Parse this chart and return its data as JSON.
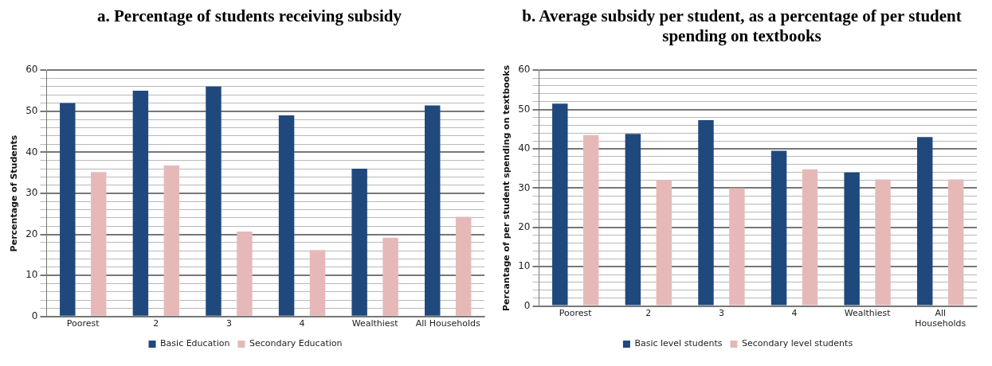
{
  "chart_data": [
    {
      "type": "bar",
      "title": "a. Percentage of students receiving subsidy",
      "ylabel": "Percentage of Students",
      "categories": [
        "Poorest",
        "2",
        "3",
        "4",
        "Wealthiest",
        "All Households"
      ],
      "series": [
        {
          "name": "Basic Education",
          "color": "#1f497d",
          "values": [
            52,
            55,
            56,
            49,
            36,
            51.4
          ]
        },
        {
          "name": "Secondary Education",
          "color": "#e6b9b8",
          "values": [
            35.2,
            36.8,
            20.7,
            16.2,
            19.2,
            24.3
          ]
        }
      ],
      "ylim": [
        0,
        60
      ],
      "yticks": [
        0,
        {
          "value": 2,
          "label": null
        },
        {
          "value": 4,
          "label": null
        },
        {
          "value": 6,
          "label": null
        },
        {
          "value": 8,
          "label": null
        },
        10,
        {
          "value": 12,
          "label": null
        },
        {
          "value": 14,
          "label": null
        },
        {
          "value": 16,
          "label": null
        },
        {
          "value": 18,
          "label": null
        },
        20,
        {
          "value": 22,
          "label": null
        },
        {
          "value": 24,
          "label": null
        },
        {
          "value": 26,
          "label": null
        },
        {
          "value": 28,
          "label": null
        },
        30,
        {
          "value": 32,
          "label": null
        },
        {
          "value": 34,
          "label": null
        },
        {
          "value": 36,
          "label": null
        },
        {
          "value": 38,
          "label": null
        },
        40,
        {
          "value": 42,
          "label": null
        },
        {
          "value": 44,
          "label": null
        },
        {
          "value": 46,
          "label": null
        },
        {
          "value": 48,
          "label": null
        },
        50,
        {
          "value": 52,
          "label": null
        },
        {
          "value": 54,
          "label": null
        },
        {
          "value": 56,
          "label": null
        },
        {
          "value": 58,
          "label": null
        },
        60
      ],
      "grid": "y",
      "legend": "bottom"
    },
    {
      "type": "bar",
      "title": "b. Average subsidy per student, as a percentage of per student spending on textbooks",
      "ylabel": "Percantage of per student spending on textbooks",
      "categories": [
        "Poorest",
        "2",
        "3",
        "4",
        "Wealthiest",
        "All Households"
      ],
      "series": [
        {
          "name": "Basic level students",
          "color": "#1f497d",
          "values": [
            51.5,
            43.8,
            47.3,
            39.5,
            34,
            43
          ]
        },
        {
          "name": "Secondary level students",
          "color": "#e6b9b8",
          "values": [
            43.5,
            32,
            30,
            34.8,
            32.2,
            32.2
          ]
        }
      ],
      "ylim": [
        0,
        60
      ],
      "yticks": [
        0,
        {
          "value": 2,
          "label": null
        },
        {
          "value": 4,
          "label": null
        },
        {
          "value": 6,
          "label": null
        },
        {
          "value": 8,
          "label": null
        },
        10,
        {
          "value": 12,
          "label": null
        },
        {
          "value": 14,
          "label": null
        },
        {
          "value": 16,
          "label": null
        },
        {
          "value": 18,
          "label": null
        },
        20,
        {
          "value": 22,
          "label": null
        },
        {
          "value": 24,
          "label": null
        },
        {
          "value": 26,
          "label": null
        },
        {
          "value": 28,
          "label": null
        },
        30,
        {
          "value": 32,
          "label": null
        },
        {
          "value": 34,
          "label": null
        },
        {
          "value": 36,
          "label": null
        },
        {
          "value": 38,
          "label": null
        },
        40,
        {
          "value": 42,
          "label": null
        },
        {
          "value": 44,
          "label": null
        },
        {
          "value": 46,
          "label": null
        },
        {
          "value": 48,
          "label": null
        },
        50,
        {
          "value": 52,
          "label": null
        },
        {
          "value": 54,
          "label": null
        },
        {
          "value": 56,
          "label": null
        },
        {
          "value": 58,
          "label": null
        },
        60
      ],
      "grid": "y",
      "legend": "bottom"
    }
  ]
}
